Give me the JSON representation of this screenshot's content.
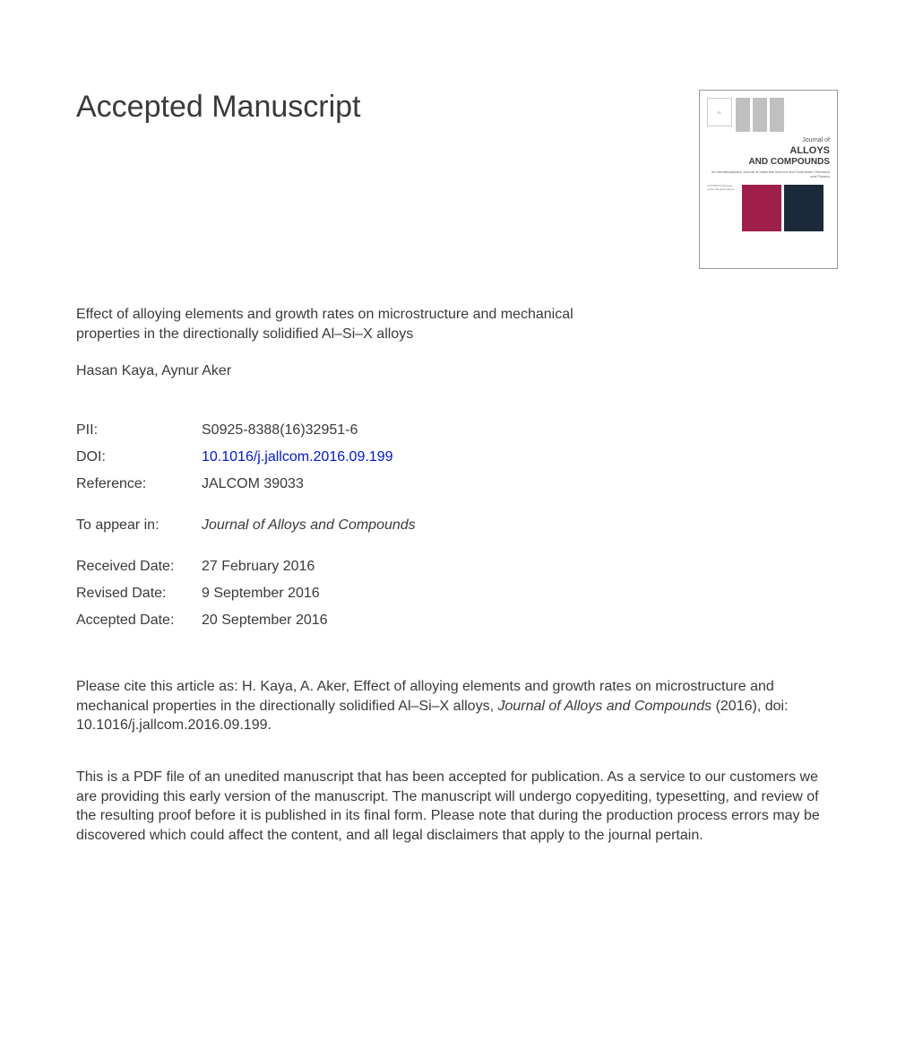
{
  "heading": "Accepted Manuscript",
  "article_title": "Effect of alloying elements and growth rates on microstructure and mechanical properties in the directionally solidified Al–Si–X alloys",
  "authors": "Hasan Kaya, Aynur Aker",
  "metadata": {
    "pii_label": "PII:",
    "pii_value": "S0925-8388(16)32951-6",
    "doi_label": "DOI:",
    "doi_value": "10.1016/j.jallcom.2016.09.199",
    "reference_label": "Reference:",
    "reference_value": "JALCOM 39033",
    "appear_label": "To appear in:",
    "appear_value": "Journal of Alloys and Compounds",
    "received_label": "Received Date:",
    "received_value": "27 February 2016",
    "revised_label": "Revised Date:",
    "revised_value": "9 September 2016",
    "accepted_label": "Accepted Date:",
    "accepted_value": "20 September 2016"
  },
  "citation": {
    "prefix": "Please cite this article as: H. Kaya, A. Aker, Effect of alloying elements and growth rates on microstructure and mechanical properties in the directionally solidified Al–Si–X alloys, ",
    "journal_italic": "Journal of Alloys and Compounds",
    "suffix": " (2016), doi: 10.1016/j.jallcom.2016.09.199."
  },
  "disclaimer": "This is a PDF file of an unedited manuscript that has been accepted for publication. As a service to our customers we are providing this early version of the manuscript. The manuscript will undergo copyediting, typesetting, and review of the resulting proof before it is published in its final form. Please note that during the production process errors may be discovered which could affect the content, and all legal disclaimers that apply to the journal pertain.",
  "cover": {
    "pretitle": "Journal of",
    "title_line1": "ALLOYS",
    "title_line2": "AND COMPOUNDS",
    "subtitle": "An Interdisciplinary Journal of Materials Science and Solid-state Chemistry and Physics",
    "text_lines": "CONTENTS Reviews Letters Regular papers",
    "colors": {
      "bar_gray": "#c0c0c0",
      "sq_maroon": "#a01e4a",
      "sq_dark": "#1a2a3a",
      "border": "#999999"
    }
  },
  "colors": {
    "text": "#3a3a3a",
    "link": "#0018d8",
    "background": "#ffffff"
  }
}
